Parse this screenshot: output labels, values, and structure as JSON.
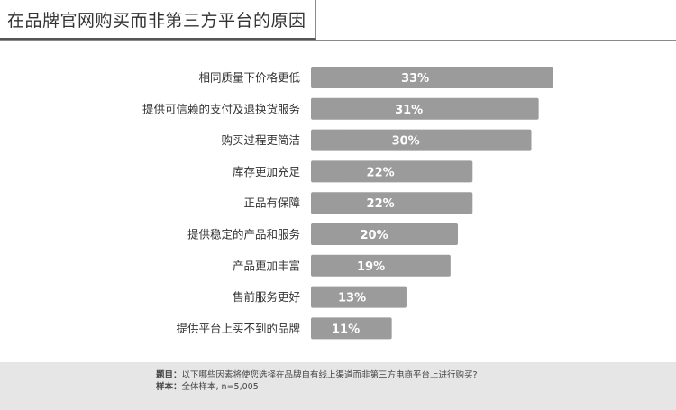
{
  "title": "在品牌官网购买而非第三方平台的原因",
  "chart_data": {
    "type": "bar",
    "orientation": "horizontal",
    "categories": [
      "相同质量下价格更低",
      "提供可信赖的支付及退换货服务",
      "购买过程更简洁",
      "库存更加充足",
      "正品有保障",
      "提供稳定的产品和服务",
      "产品更加丰富",
      "售前服务更好",
      "提供平台上买不到的品牌"
    ],
    "values": [
      33,
      31,
      30,
      22,
      22,
      20,
      19,
      13,
      11
    ],
    "value_suffix": "%",
    "bar_color": "#9b9b9b",
    "label_color": "#ffffff"
  },
  "footer": {
    "question_label": "题目：",
    "question_text": "以下哪些因素将使您选择在品牌自有线上渠道而非第三方电商平台上进行购买?",
    "sample_label": "样本：",
    "sample_text": "全体样本, n=5,005"
  }
}
